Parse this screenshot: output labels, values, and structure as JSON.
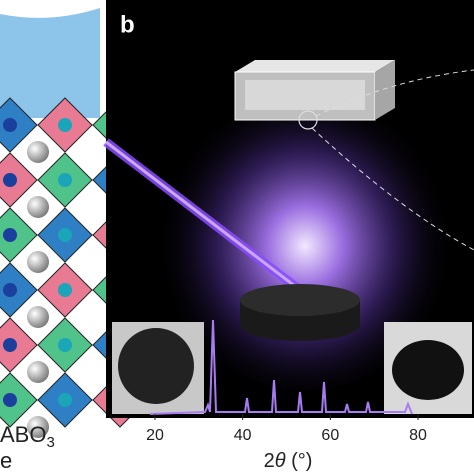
{
  "panel_label": "b",
  "formula": {
    "base": "ABO",
    "subscript": "3"
  },
  "left_caption": "e",
  "x_axis": {
    "ticks": [
      "20",
      "40",
      "60",
      "80"
    ],
    "label": {
      "prefix": "2",
      "symbol": "θ",
      "suffix": " (°)"
    }
  }
}
